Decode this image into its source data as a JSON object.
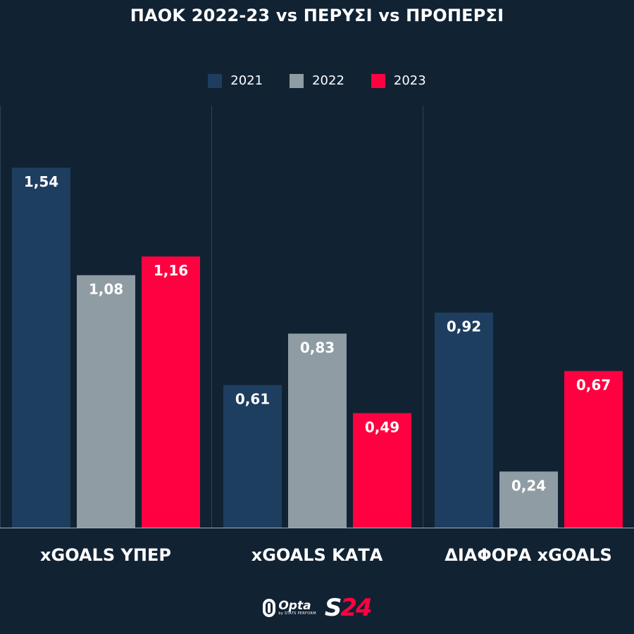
{
  "title": "ΠΑΟΚ 2022-23 vs ΠΕΡΥΣΙ vs ΠΡΟΠΕΡΣΙ",
  "colors": {
    "background": "#112233",
    "divider": "#2e4156",
    "baseline": "#a7b0b8"
  },
  "chart_data": {
    "type": "bar",
    "title": "ΠΑΟΚ 2022-23 vs ΠΕΡΥΣΙ vs ΠΡΟΠΕΡΣΙ",
    "categories": [
      "xGOALS ΥΠΕΡ",
      "xGOALS ΚΑΤΑ",
      "ΔΙΑΦΟΡΑ xGOALS"
    ],
    "series": [
      {
        "name": "2021",
        "color": "#1e3e60",
        "values": [
          1.54,
          0.61,
          0.92
        ],
        "labels": [
          "1,54",
          "0,61",
          "0,92"
        ]
      },
      {
        "name": "2022",
        "color": "#8f9ca4",
        "values": [
          1.08,
          0.83,
          0.24
        ],
        "labels": [
          "1,08",
          "0,83",
          "0,24"
        ]
      },
      {
        "name": "2023",
        "color": "#ff0040",
        "values": [
          1.16,
          0.49,
          0.67
        ],
        "labels": [
          "1,16",
          "0,49",
          "0,67"
        ]
      }
    ],
    "ylim": [
      0,
      1.54
    ],
    "legend": "top-center",
    "grid": false
  },
  "footer": {
    "opta_name": "Opta",
    "opta_sub": "by STATS PERFORM",
    "s24_s": "S",
    "s24_n": "24"
  }
}
